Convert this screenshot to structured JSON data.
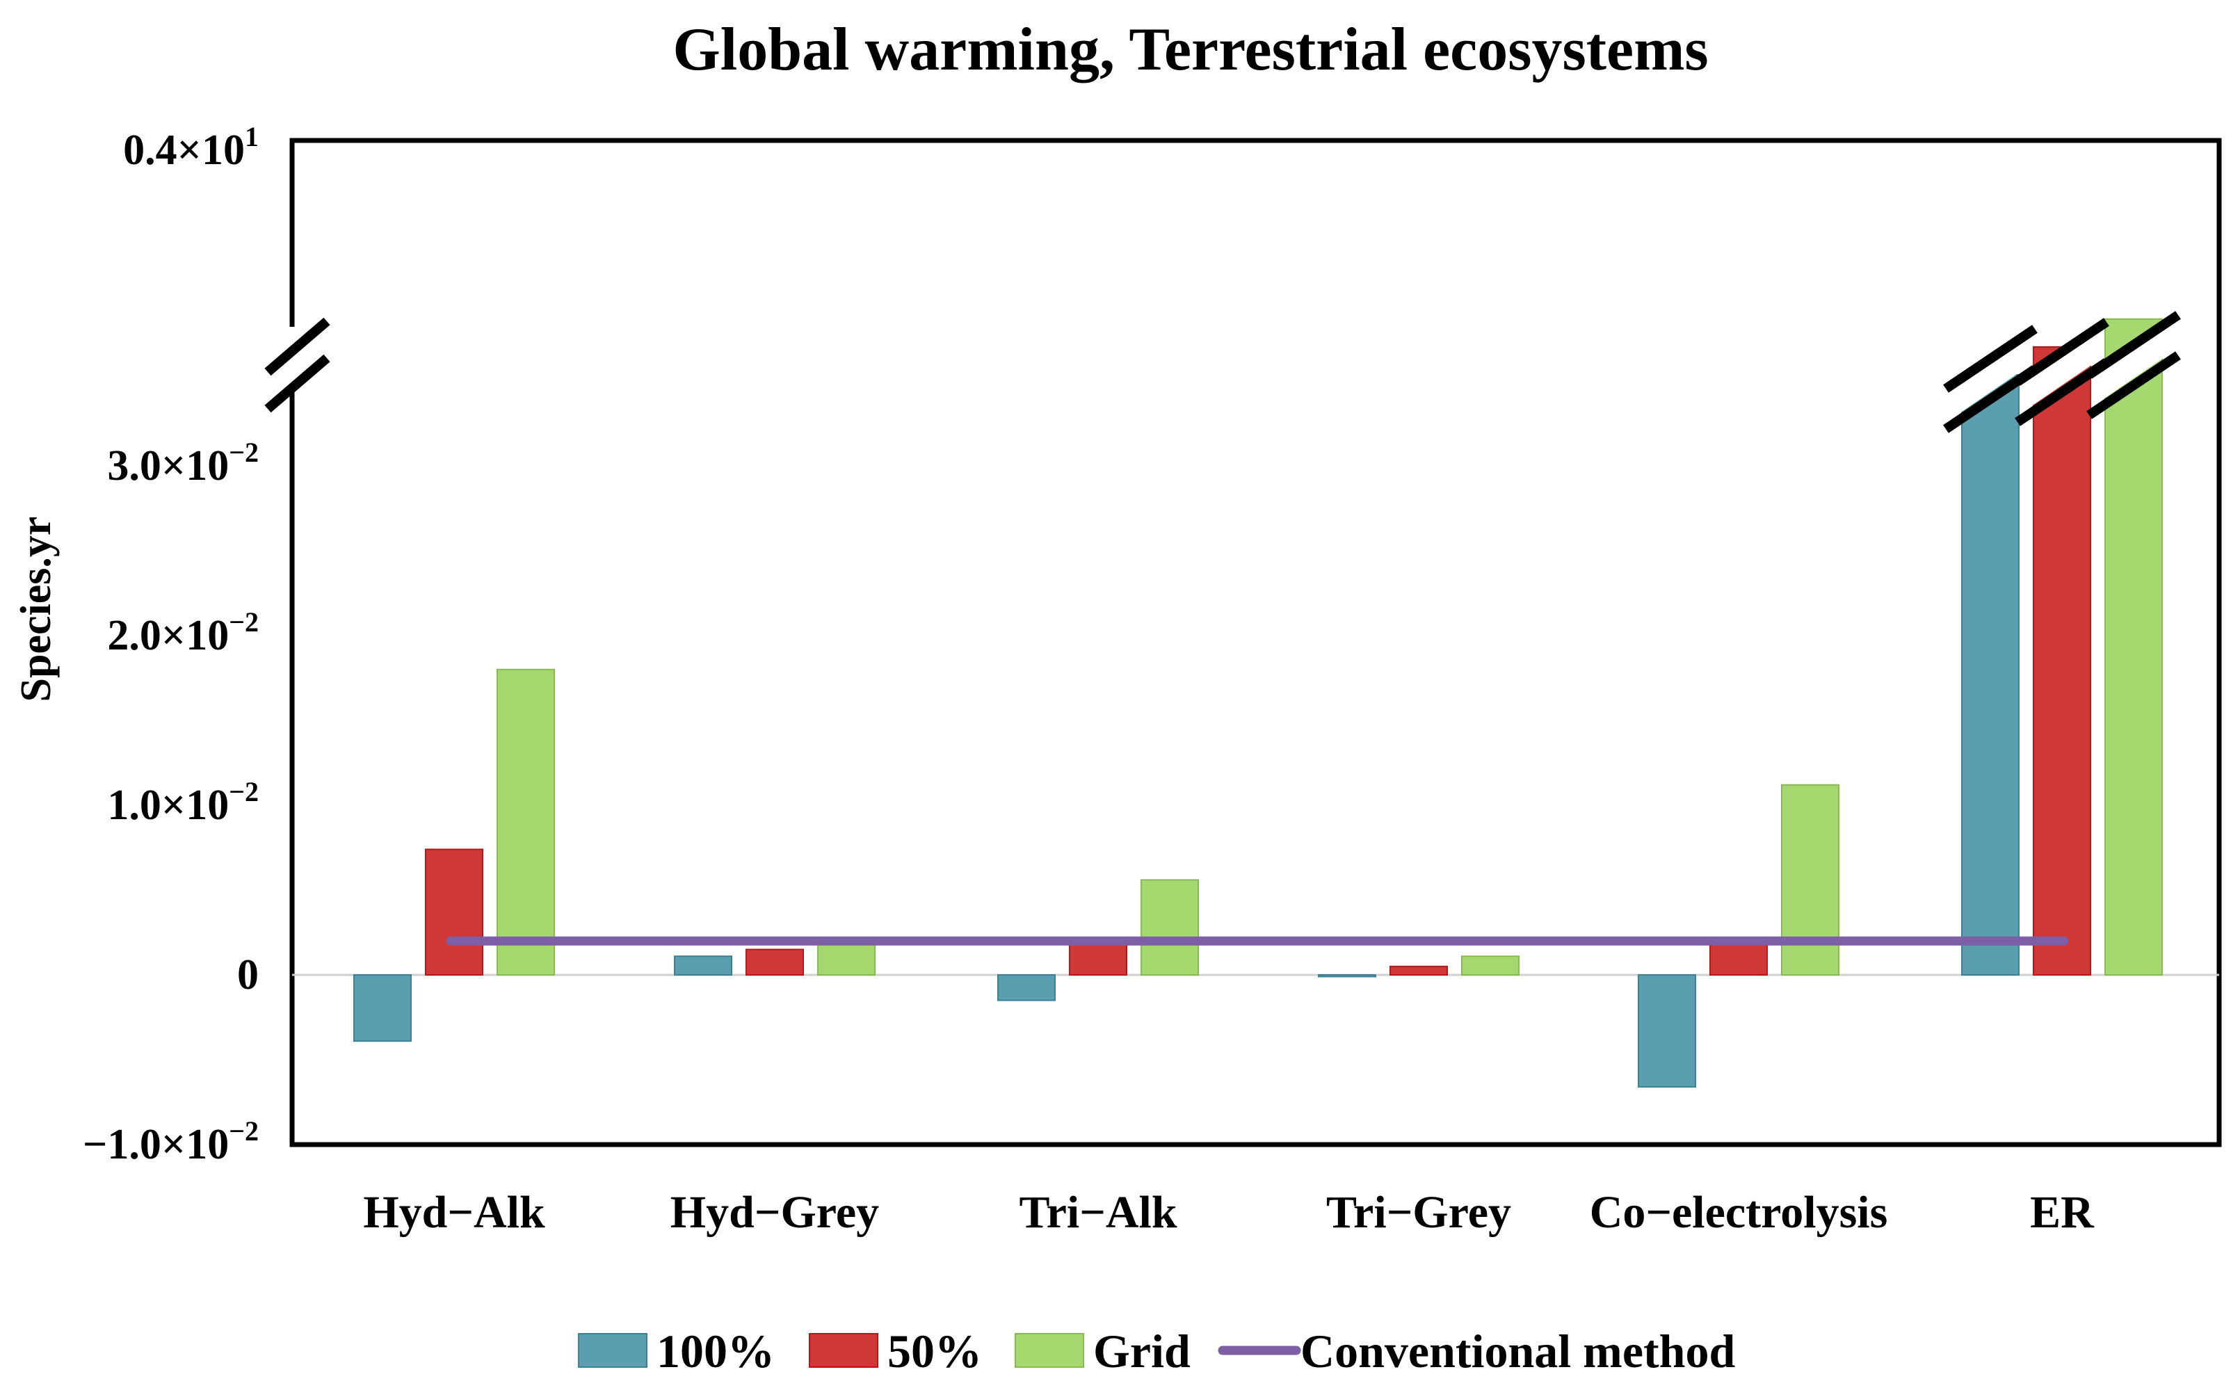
{
  "chart_data": {
    "type": "bar",
    "title": "Global warming, Terrestrial ecosystems",
    "xlabel": "",
    "ylabel": "Species.yr",
    "categories": [
      "Hyd−Alk",
      "Hyd−Grey",
      "Tri−Alk",
      "Tri−Grey",
      "Co−electrolysis",
      "ER"
    ],
    "series": [
      {
        "name": "100%",
        "color": "#5b9eb0",
        "values": [
          -0.0039,
          0.0011,
          -0.0015,
          -0.0001,
          -0.0066,
          3.2
        ]
      },
      {
        "name": "50%",
        "color": "#d03838",
        "values": [
          0.0074,
          0.0015,
          0.0019,
          0.0005,
          0.0019,
          3.3
        ]
      },
      {
        "name": "Grid",
        "color": "#a6d870",
        "values": [
          0.018,
          0.0019,
          0.0056,
          0.0011,
          0.0112,
          3.4
        ]
      }
    ],
    "reference_line": {
      "name": "Conventional method",
      "color": "#7d5fa6",
      "value": 0.002
    },
    "ylim": [
      -0.01,
      4.0
    ],
    "axis_break": {
      "lower_max": 0.032,
      "upper_min": 2.5,
      "upper_max": 4.0
    },
    "yticks": [
      {
        "value": 4.0,
        "base": "0.4×10",
        "exp": "1"
      },
      {
        "value": 0.03,
        "base": "3.0×10",
        "exp": "−2"
      },
      {
        "value": 0.02,
        "base": "2.0×10",
        "exp": "−2"
      },
      {
        "value": 0.01,
        "base": "1.0×10",
        "exp": "−2"
      },
      {
        "value": 0,
        "base": "0",
        "exp": ""
      },
      {
        "value": -0.01,
        "base": "−1.0×10",
        "exp": "−2"
      }
    ],
    "legend": [
      "100%",
      "50%",
      "Grid",
      "Conventional method"
    ],
    "legend_position": "bottom",
    "grid": false
  }
}
